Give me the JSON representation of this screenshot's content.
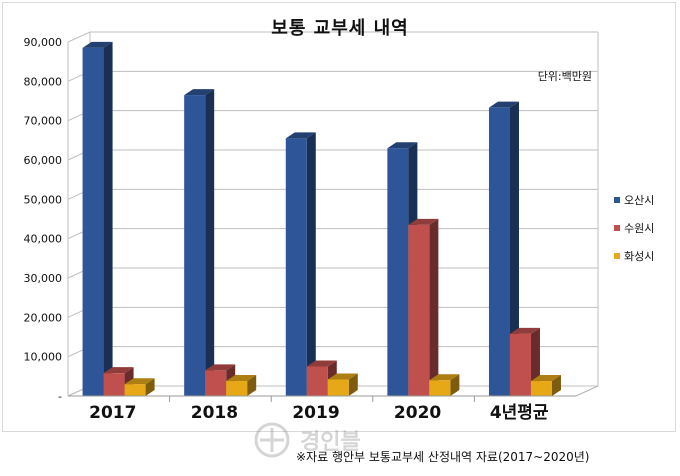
{
  "chart_data": {
    "type": "bar",
    "title": "보통 교부세 내역",
    "unit_note": "단위:백만원",
    "categories": [
      "2017",
      "2018",
      "2019",
      "2020",
      "4년평균"
    ],
    "ylim": [
      0,
      90000
    ],
    "yticks": [
      "-",
      "10,000",
      "20,000",
      "30,000",
      "40,000",
      "50,000",
      "60,000",
      "70,000",
      "80,000",
      "90,000"
    ],
    "grid": true,
    "legend_position": "right",
    "series": [
      {
        "name": "오산시",
        "values": [
          88500,
          76500,
          65500,
          63000,
          73300
        ],
        "color": "#2e5597"
      },
      {
        "name": "수원시",
        "values": [
          5800,
          6500,
          7500,
          43500,
          15800
        ],
        "color": "#c0504d"
      },
      {
        "name": "화성시",
        "values": [
          3000,
          3800,
          4200,
          4000,
          3800
        ],
        "color": "#e6a817"
      }
    ]
  },
  "source_note": "※자료 행안부 보통교부세 산정내역 자료(2017~2020년)",
  "watermark_text": "경인블"
}
